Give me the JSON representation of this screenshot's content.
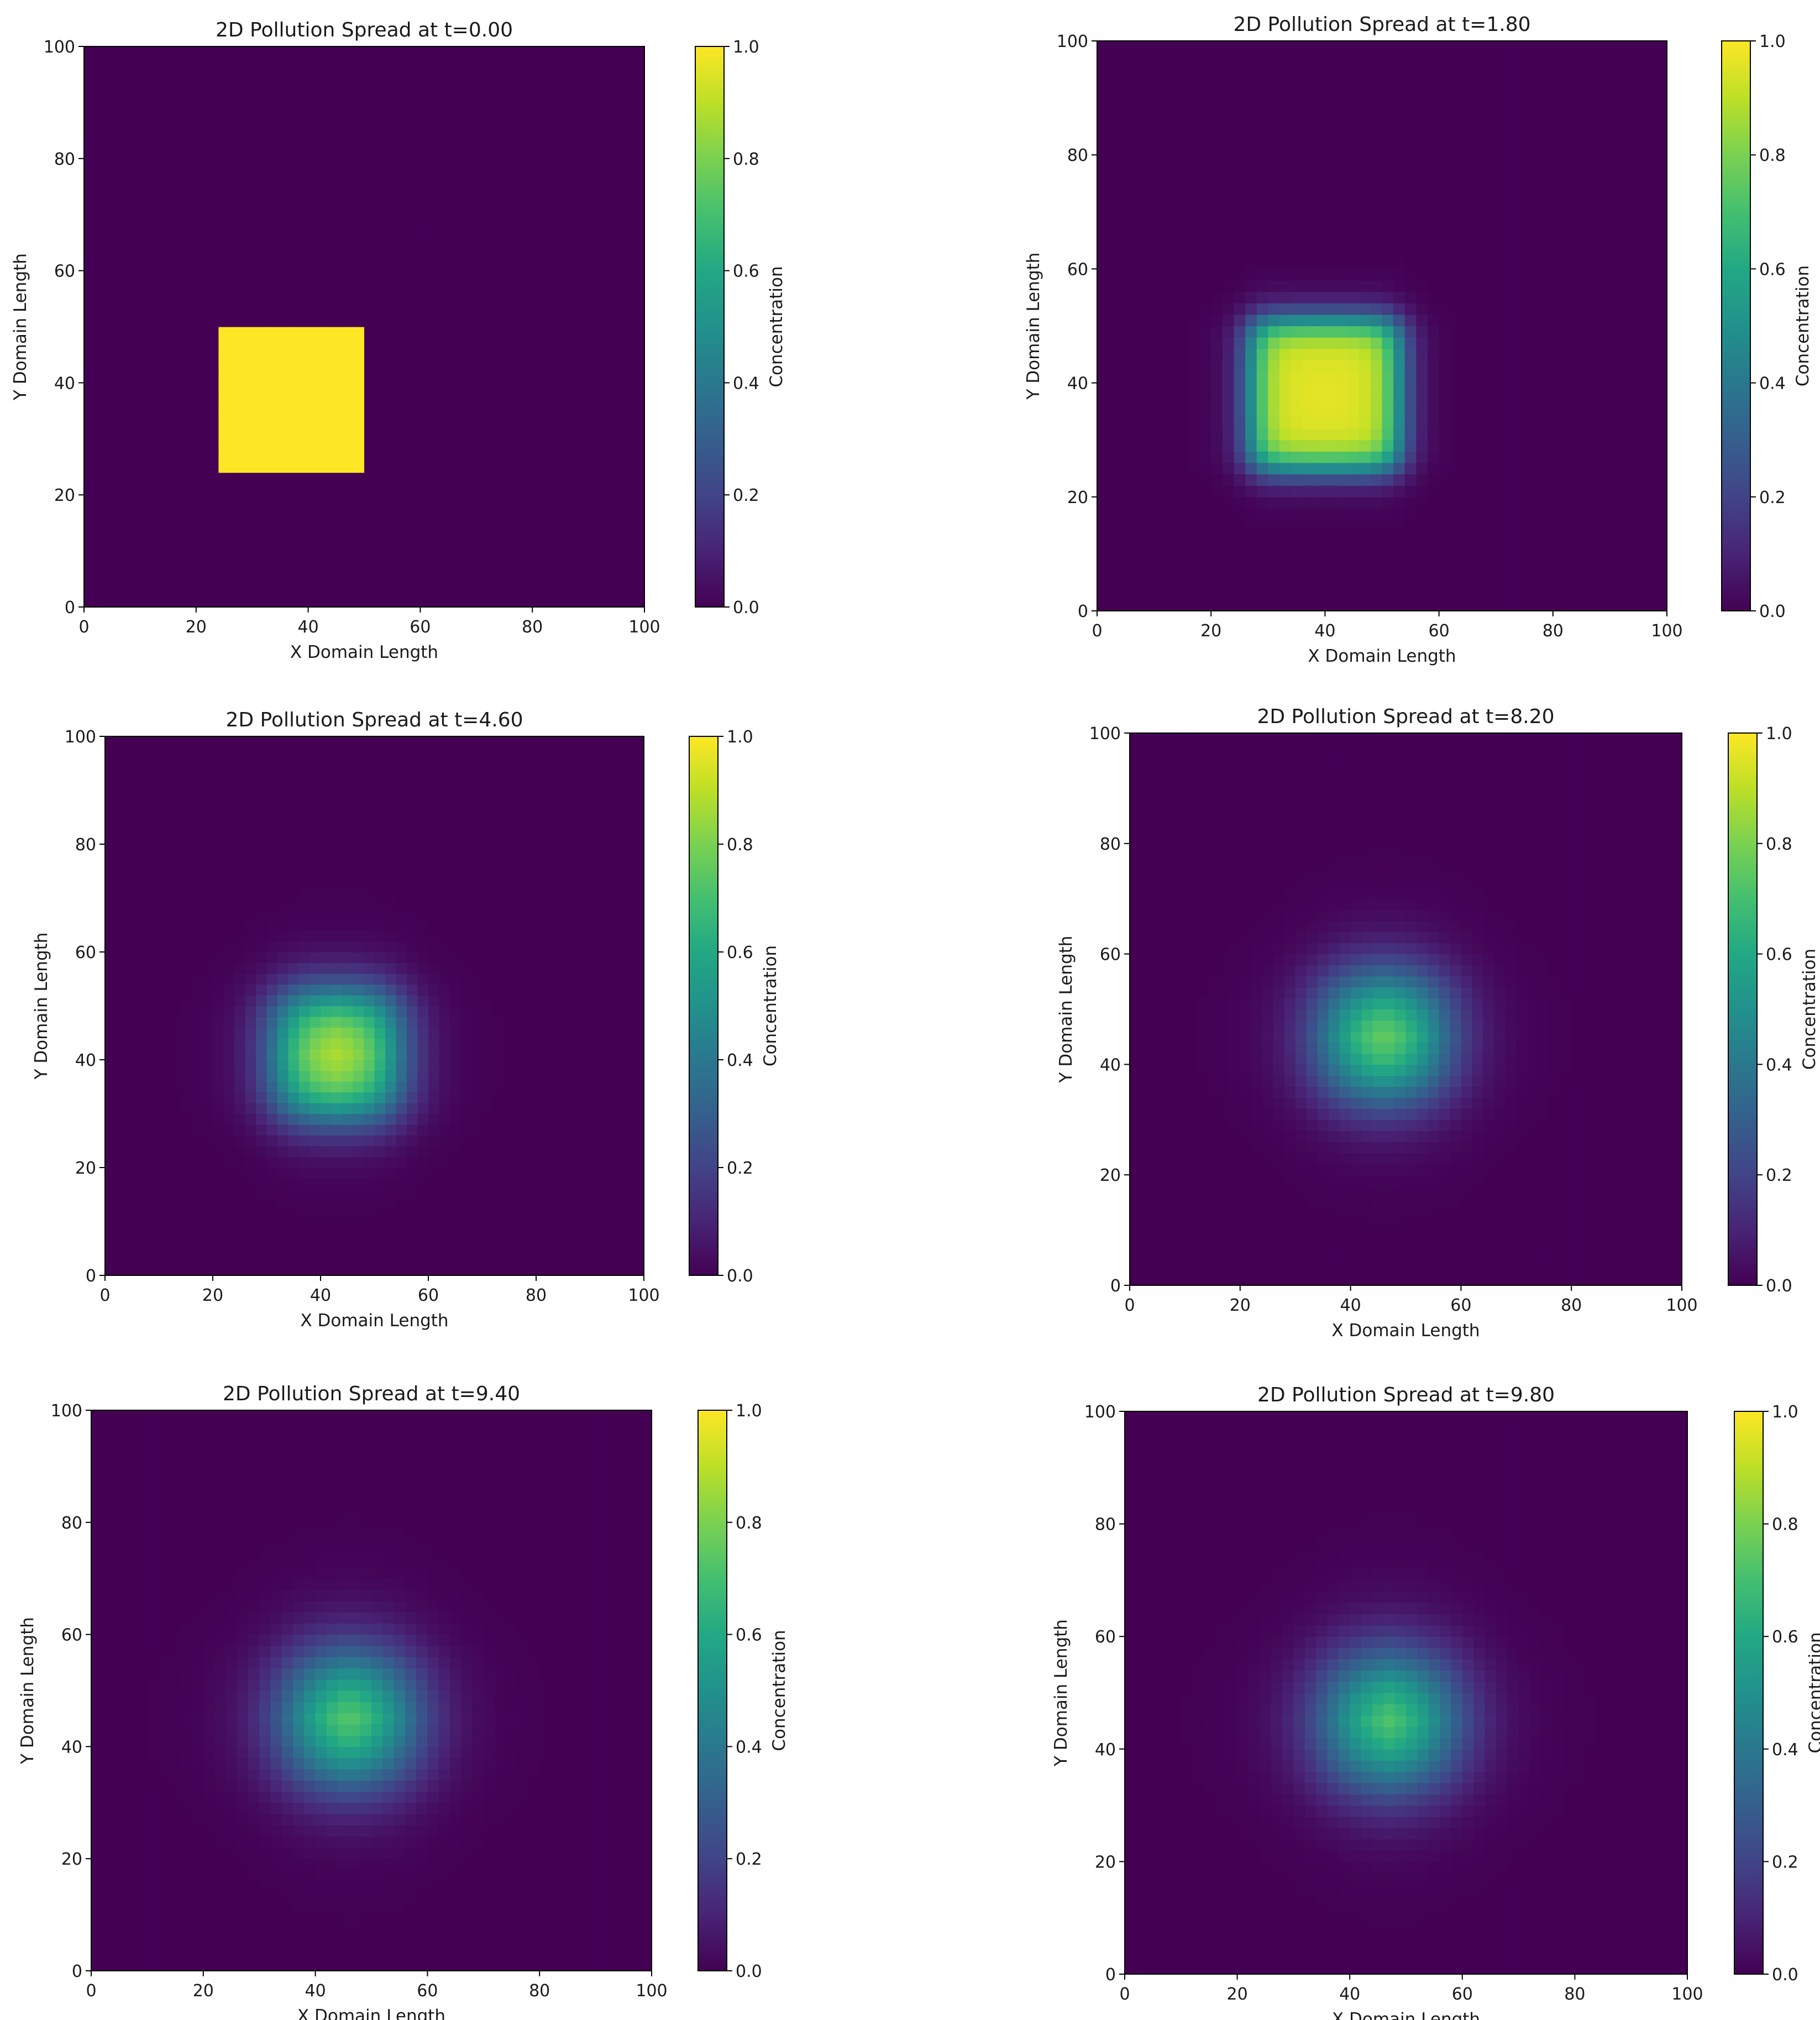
{
  "chart_data": [
    {
      "type": "heatmap",
      "title": "2D Pollution Spread at t=0.00",
      "xlabel": "X Domain Length",
      "ylabel": "Y Domain Length",
      "xlim": [
        0,
        100
      ],
      "ylim": [
        0,
        100
      ],
      "xticks": [
        "0",
        "20",
        "40",
        "60",
        "80",
        "100"
      ],
      "yticks": [
        "0",
        "20",
        "40",
        "60",
        "80",
        "100"
      ],
      "colorbar": {
        "label": "Concentration",
        "range": [
          0,
          1
        ],
        "ticks": [
          "0.0",
          "0.2",
          "0.4",
          "0.6",
          "0.8",
          "1.0"
        ],
        "colormap": "viridis"
      },
      "grid": false,
      "field": {
        "center": [
          37,
          37
        ],
        "half_size": 13,
        "peak": 1.0,
        "spread": 0,
        "cell": 2
      }
    },
    {
      "type": "heatmap",
      "title": "2D Pollution Spread at t=1.80",
      "xlabel": "X Domain Length",
      "ylabel": "Y Domain Length",
      "xlim": [
        0,
        100
      ],
      "ylim": [
        0,
        100
      ],
      "xticks": [
        "0",
        "20",
        "40",
        "60",
        "80",
        "100"
      ],
      "yticks": [
        "0",
        "20",
        "40",
        "60",
        "80",
        "100"
      ],
      "colorbar": {
        "label": "Concentration",
        "range": [
          0,
          1
        ],
        "ticks": [
          "0.0",
          "0.2",
          "0.4",
          "0.6",
          "0.8",
          "1.0"
        ],
        "colormap": "viridis"
      },
      "grid": false,
      "field": {
        "center": [
          40,
          38
        ],
        "half_size": 13,
        "peak": 0.96,
        "spread": 3.2,
        "cell": 2
      }
    },
    {
      "type": "heatmap",
      "title": "2D Pollution Spread at t=4.60",
      "xlabel": "X Domain Length",
      "ylabel": "Y Domain Length",
      "xlim": [
        0,
        100
      ],
      "ylim": [
        0,
        100
      ],
      "xticks": [
        "0",
        "20",
        "40",
        "60",
        "80",
        "100"
      ],
      "yticks": [
        "0",
        "20",
        "40",
        "60",
        "80",
        "100"
      ],
      "colorbar": {
        "label": "Concentration",
        "range": [
          0,
          1
        ],
        "ticks": [
          "0.0",
          "0.2",
          "0.4",
          "0.6",
          "0.8",
          "1.0"
        ],
        "colormap": "viridis"
      },
      "grid": false,
      "field": {
        "center": [
          43,
          41
        ],
        "half_size": 11,
        "peak": 0.92,
        "spread": 5.5,
        "cell": 2
      }
    },
    {
      "type": "heatmap",
      "title": "2D Pollution Spread at t=8.20",
      "xlabel": "X Domain Length",
      "ylabel": "Y Domain Length",
      "xlim": [
        0,
        100
      ],
      "ylim": [
        0,
        100
      ],
      "xticks": [
        "0",
        "20",
        "40",
        "60",
        "80",
        "100"
      ],
      "yticks": [
        "0",
        "20",
        "40",
        "60",
        "80",
        "100"
      ],
      "colorbar": {
        "label": "Concentration",
        "range": [
          0,
          1
        ],
        "ticks": [
          "0.0",
          "0.2",
          "0.4",
          "0.6",
          "0.8",
          "1.0"
        ],
        "colormap": "viridis"
      },
      "grid": false,
      "field": {
        "center": [
          46,
          45
        ],
        "half_size": 10,
        "peak": 0.88,
        "spread": 7.0,
        "cell": 2
      }
    },
    {
      "type": "heatmap",
      "title": "2D Pollution Spread at t=9.40",
      "xlabel": "X Domain Length",
      "ylabel": "Y Domain Length",
      "xlim": [
        0,
        100
      ],
      "ylim": [
        0,
        100
      ],
      "xticks": [
        "0",
        "20",
        "40",
        "60",
        "80",
        "100"
      ],
      "yticks": [
        "0",
        "20",
        "40",
        "60",
        "80",
        "100"
      ],
      "colorbar": {
        "label": "Concentration",
        "range": [
          0,
          1
        ],
        "ticks": [
          "0.0",
          "0.2",
          "0.4",
          "0.6",
          "0.8",
          "1.0"
        ],
        "colormap": "viridis"
      },
      "grid": false,
      "field": {
        "center": [
          46,
          45
        ],
        "half_size": 10,
        "peak": 0.87,
        "spread": 7.5,
        "cell": 2
      }
    },
    {
      "type": "heatmap",
      "title": "2D Pollution Spread at t=9.80",
      "xlabel": "X Domain Length",
      "ylabel": "Y Domain Length",
      "xlim": [
        0,
        100
      ],
      "ylim": [
        0,
        100
      ],
      "xticks": [
        "0",
        "20",
        "40",
        "60",
        "80",
        "100"
      ],
      "yticks": [
        "0",
        "20",
        "40",
        "60",
        "80",
        "100"
      ],
      "colorbar": {
        "label": "Concentration",
        "range": [
          0,
          1
        ],
        "ticks": [
          "0.0",
          "0.2",
          "0.4",
          "0.6",
          "0.8",
          "1.0"
        ],
        "colormap": "viridis"
      },
      "grid": false,
      "field": {
        "center": [
          47,
          45
        ],
        "half_size": 10,
        "peak": 0.86,
        "spread": 7.7,
        "cell": 2
      }
    }
  ]
}
